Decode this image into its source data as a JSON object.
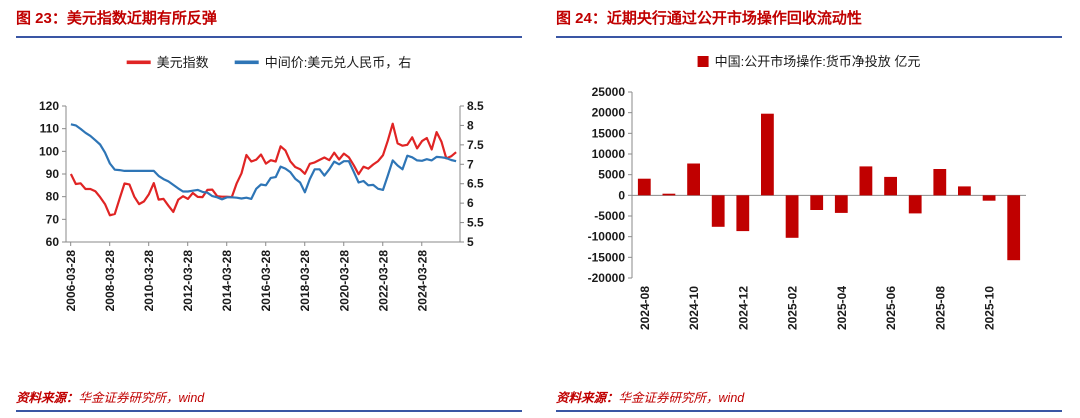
{
  "accent_color": "#c00000",
  "rule_color": "#3a56a4",
  "figures": [
    {
      "title": "图 23：美元指数近期有所反弹",
      "source_label": "资料来源：",
      "source_text": "华金证券研究所，wind"
    },
    {
      "title": "图 24：近期央行通过公开市场操作回收流动性",
      "source_label": "资料来源：",
      "source_text": "华金证券研究所，wind"
    }
  ],
  "chart_data": [
    {
      "type": "line",
      "title": "图 23：美元指数近期有所反弹",
      "x_range": [
        2006.0,
        2026.2
      ],
      "x_ticks": [
        {
          "label": "2006-03-28",
          "x": 2006.24
        },
        {
          "label": "2008-03-28",
          "x": 2008.24
        },
        {
          "label": "2010-03-28",
          "x": 2010.24
        },
        {
          "label": "2012-03-28",
          "x": 2012.24
        },
        {
          "label": "2014-03-28",
          "x": 2014.24
        },
        {
          "label": "2016-03-28",
          "x": 2016.24
        },
        {
          "label": "2018-03-28",
          "x": 2018.24
        },
        {
          "label": "2020-03-28",
          "x": 2020.24
        },
        {
          "label": "2022-03-28",
          "x": 2022.24
        },
        {
          "label": "2024-03-28",
          "x": 2024.24
        }
      ],
      "left_axis": {
        "min": 60,
        "max": 120,
        "ticks": [
          60,
          70,
          80,
          90,
          100,
          110,
          120
        ]
      },
      "right_axis": {
        "min": 5,
        "max": 8.5,
        "ticks": [
          "5",
          "5.5",
          "6",
          "6.5",
          "7",
          "7.5",
          "8",
          "8.5"
        ]
      },
      "legend_position": "top",
      "grid": false,
      "series": [
        {
          "name": "美元指数",
          "color": "#e02424",
          "axis": "left",
          "x_start": 2006.25,
          "x_step": 0.25,
          "values": [
            90.0,
            85.6,
            85.9,
            83.4,
            83.4,
            82.4,
            79.8,
            76.7,
            71.8,
            72.4,
            79.1,
            85.8,
            85.4,
            80.0,
            76.7,
            77.9,
            81.1,
            86.0,
            78.7,
            79.0,
            76.0,
            73.3,
            78.6,
            80.2,
            79.0,
            81.6,
            79.9,
            79.8,
            83.0,
            83.1,
            80.2,
            80.0,
            80.0,
            79.8,
            85.9,
            90.3,
            98.4,
            95.5,
            96.3,
            98.6,
            94.6,
            96.1,
            95.5,
            102.2,
            100.4,
            95.6,
            93.1,
            92.1,
            90.1,
            94.5,
            95.1,
            96.2,
            97.3,
            96.1,
            99.4,
            96.4,
            99.0,
            97.4,
            93.9,
            89.9,
            93.2,
            92.4,
            94.2,
            95.7,
            98.3,
            104.7,
            112.2,
            103.5,
            102.5,
            102.9,
            106.2,
            101.3,
            104.5,
            105.9,
            100.8,
            108.5,
            104.2,
            96.9,
            97.8,
            99.6
          ]
        },
        {
          "name": "中间价:美元兑人民币，右",
          "color": "#2e75b6",
          "axis": "right",
          "x_start": 2006.25,
          "x_step": 0.25,
          "values": [
            8.03,
            8.0,
            7.91,
            7.81,
            7.73,
            7.62,
            7.51,
            7.3,
            7.02,
            6.86,
            6.85,
            6.83,
            6.83,
            6.83,
            6.83,
            6.83,
            6.83,
            6.83,
            6.7,
            6.62,
            6.56,
            6.47,
            6.38,
            6.3,
            6.3,
            6.32,
            6.34,
            6.29,
            6.27,
            6.18,
            6.15,
            6.1,
            6.15,
            6.15,
            6.14,
            6.12,
            6.14,
            6.11,
            6.37,
            6.48,
            6.46,
            6.65,
            6.67,
            6.94,
            6.89,
            6.8,
            6.63,
            6.53,
            6.28,
            6.62,
            6.87,
            6.87,
            6.71,
            6.87,
            7.07,
            7.0,
            7.08,
            7.08,
            6.81,
            6.53,
            6.57,
            6.46,
            6.47,
            6.37,
            6.34,
            6.71,
            7.1,
            6.97,
            6.87,
            7.22,
            7.18,
            7.1,
            7.09,
            7.13,
            7.1,
            7.19,
            7.18,
            7.16,
            7.11,
            7.08
          ]
        }
      ]
    },
    {
      "type": "bar",
      "title": "图 24：近期央行通过公开市场操作回收流动性",
      "legend": "中国:公开市场操作:货币净投放 亿元",
      "bar_color": "#c00000",
      "categories": [
        "2024-08",
        "2024-09",
        "2024-10",
        "2024-11",
        "2024-12",
        "2025-01",
        "2025-02",
        "2025-03",
        "2025-04",
        "2025-05",
        "2025-06",
        "2025-07",
        "2025-08",
        "2025-09",
        "2025-10",
        "2025-11"
      ],
      "values": [
        4018,
        400,
        7700,
        -7620,
        -8660,
        19750,
        -10280,
        -3550,
        -4250,
        7010,
        4450,
        -4380,
        6380,
        2150,
        -1300,
        -15700
      ],
      "ylim": [
        -20000,
        25000
      ],
      "y_ticks": [
        25000,
        20000,
        15000,
        10000,
        5000,
        0,
        -5000,
        -10000,
        -15000,
        -20000
      ],
      "x_tick_every": 2,
      "legend_position": "top",
      "grid": false
    }
  ]
}
